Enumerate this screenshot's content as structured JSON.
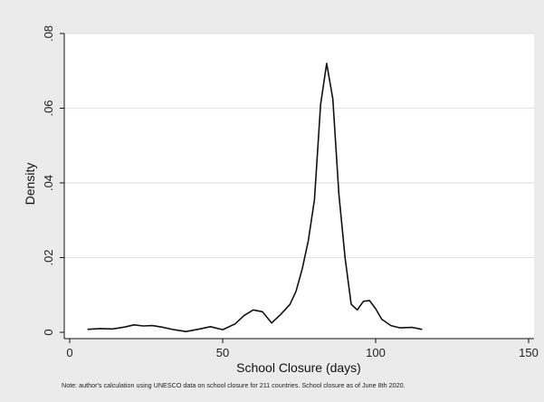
{
  "chart_data": {
    "type": "line",
    "xlabel": "School Closure (days)",
    "ylabel": "Density",
    "xlim": [
      0,
      150
    ],
    "ylim": [
      0,
      0.08
    ],
    "xticks": [
      {
        "value": 0,
        "label": "0"
      },
      {
        "value": 50,
        "label": "50"
      },
      {
        "value": 100,
        "label": "100"
      },
      {
        "value": 150,
        "label": "150"
      }
    ],
    "yticks": [
      {
        "value": 0,
        "label": "0"
      },
      {
        "value": 0.02,
        "label": ".02"
      },
      {
        "value": 0.04,
        "label": ".04"
      },
      {
        "value": 0.06,
        "label": ".06"
      },
      {
        "value": 0.08,
        "label": ".08"
      }
    ],
    "grid": "horizontal",
    "note": "Note: author's calculation using UNESCO data on school closure for 211 countries. School closure as of June 8th 2020.",
    "series": [
      {
        "color": "#111111",
        "points": [
          [
            6,
            0.0008
          ],
          [
            10,
            0.001
          ],
          [
            14,
            0.0009
          ],
          [
            18,
            0.0014
          ],
          [
            21,
            0.002
          ],
          [
            24,
            0.0017
          ],
          [
            27,
            0.0018
          ],
          [
            30,
            0.0014
          ],
          [
            34,
            0.0007
          ],
          [
            38,
            0.0002
          ],
          [
            42,
            0.0008
          ],
          [
            46,
            0.0015
          ],
          [
            50,
            0.0007
          ],
          [
            54,
            0.0022
          ],
          [
            57,
            0.0045
          ],
          [
            60,
            0.006
          ],
          [
            63,
            0.0055
          ],
          [
            66,
            0.0025
          ],
          [
            69,
            0.0048
          ],
          [
            72,
            0.0075
          ],
          [
            74,
            0.011
          ],
          [
            76,
            0.017
          ],
          [
            78,
            0.0245
          ],
          [
            80,
            0.0355
          ],
          [
            82,
            0.061
          ],
          [
            84,
            0.072
          ],
          [
            86,
            0.0625
          ],
          [
            88,
            0.037
          ],
          [
            90,
            0.02
          ],
          [
            92,
            0.0075
          ],
          [
            94,
            0.006
          ],
          [
            96,
            0.0083
          ],
          [
            98,
            0.0085
          ],
          [
            100,
            0.0063
          ],
          [
            102,
            0.0035
          ],
          [
            105,
            0.0018
          ],
          [
            108,
            0.0012
          ],
          [
            112,
            0.0013
          ],
          [
            115,
            0.0008
          ]
        ]
      }
    ]
  }
}
